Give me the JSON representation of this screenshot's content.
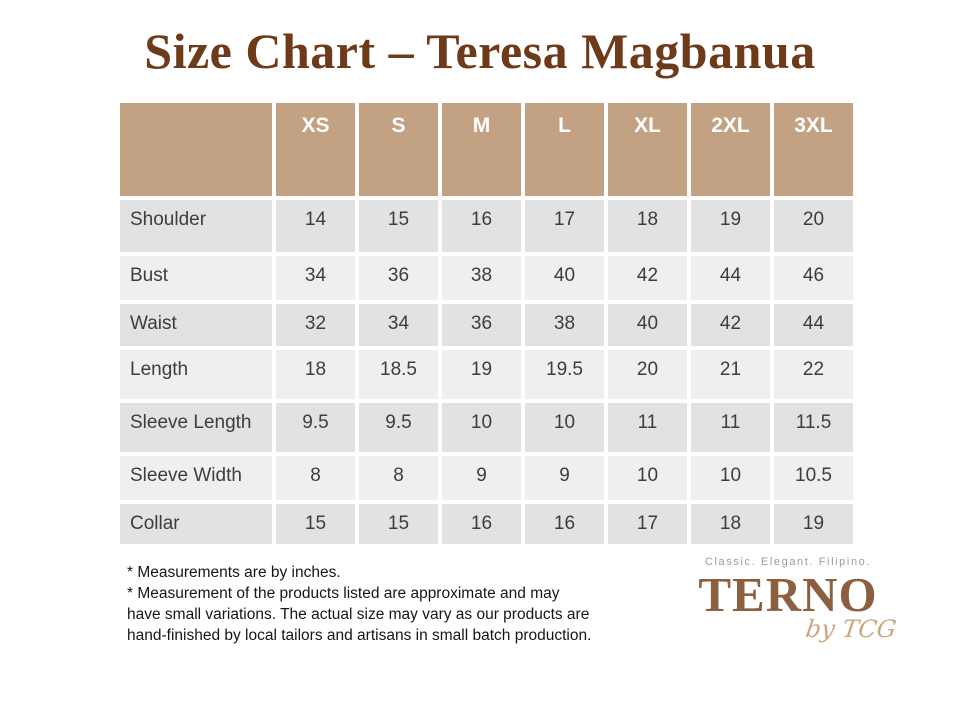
{
  "page": {
    "title": "Size Chart – Teresa Magbanua"
  },
  "size_chart": {
    "columns": [
      "XS",
      "S",
      "M",
      "L",
      "XL",
      "2XL",
      "3XL"
    ],
    "rows": [
      {
        "label": "Shoulder",
        "values": [
          "14",
          "15",
          "16",
          "17",
          "18",
          "19",
          "20"
        ]
      },
      {
        "label": "Bust",
        "values": [
          "34",
          "36",
          "38",
          "40",
          "42",
          "44",
          "46"
        ]
      },
      {
        "label": "Waist",
        "values": [
          "32",
          "34",
          "36",
          "38",
          "40",
          "42",
          "44"
        ]
      },
      {
        "label": "Length",
        "values": [
          "18",
          "18.5",
          "19",
          "19.5",
          "20",
          "21",
          "22"
        ]
      },
      {
        "label": "Sleeve Length",
        "values": [
          "9.5",
          "9.5",
          "10",
          "10",
          "11",
          "11",
          "11.5"
        ]
      },
      {
        "label": "Sleeve Width",
        "values": [
          "8",
          "8",
          "9",
          "9",
          "10",
          "10",
          "10.5"
        ]
      },
      {
        "label": "Collar",
        "values": [
          "15",
          "15",
          "16",
          "16",
          "17",
          "18",
          "19"
        ]
      }
    ]
  },
  "footnotes": {
    "line1": "* Measurements are by inches.",
    "line2": "* Measurement of the products listed are approximate and may",
    "line3": "have small variations. The actual size may vary as our products are",
    "line4": "hand-finished by local tailors and artisans in small batch production."
  },
  "brand": {
    "tagline": "Classic. Elegant. Filipino.",
    "name": "TERNO",
    "subname": "by TCG"
  },
  "colors": {
    "header_bg": "#c3a183",
    "row_dark": "#e2e2e2",
    "row_light": "#efefef",
    "cell_text": "#3d3d3d",
    "title_brown": "#6e3a1a",
    "logo_brown": "#8c5f41",
    "script_tan": "#c9a87f",
    "tagline_gray": "#9b9b9b"
  }
}
